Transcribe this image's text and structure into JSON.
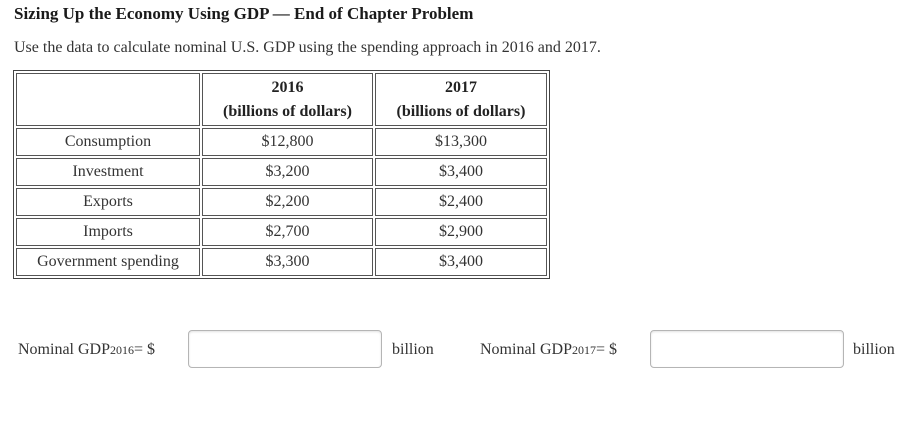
{
  "problem": {
    "title": "Sizing Up the Economy Using GDP — End of Chapter Problem",
    "instructions": "Use the data to calculate nominal U.S. GDP using the spending approach in 2016 and 2017."
  },
  "table": {
    "headers": [
      {
        "year": "",
        "unit": ""
      },
      {
        "year": "2016",
        "unit": "(billions of dollars)"
      },
      {
        "year": "2017",
        "unit": "(billions of dollars)"
      }
    ],
    "rows": [
      {
        "label": "Consumption",
        "y2016": "$12,800",
        "y2017": "$13,300"
      },
      {
        "label": "Investment",
        "y2016": "$3,200",
        "y2017": "$3,400"
      },
      {
        "label": "Exports",
        "y2016": "$2,200",
        "y2017": "$2,400"
      },
      {
        "label": "Imports",
        "y2016": "$2,700",
        "y2017": "$2,900"
      },
      {
        "label": "Government spending",
        "y2016": "$3,300",
        "y2017": "$3,400"
      }
    ]
  },
  "answers": [
    {
      "prefix": "Nominal GDP",
      "subscript": "2016",
      "equals": " = $",
      "value": "",
      "unit": "billion"
    },
    {
      "prefix": "Nominal GDP",
      "subscript": "2017",
      "equals": " = $",
      "value": "",
      "unit": "billion"
    }
  ]
}
